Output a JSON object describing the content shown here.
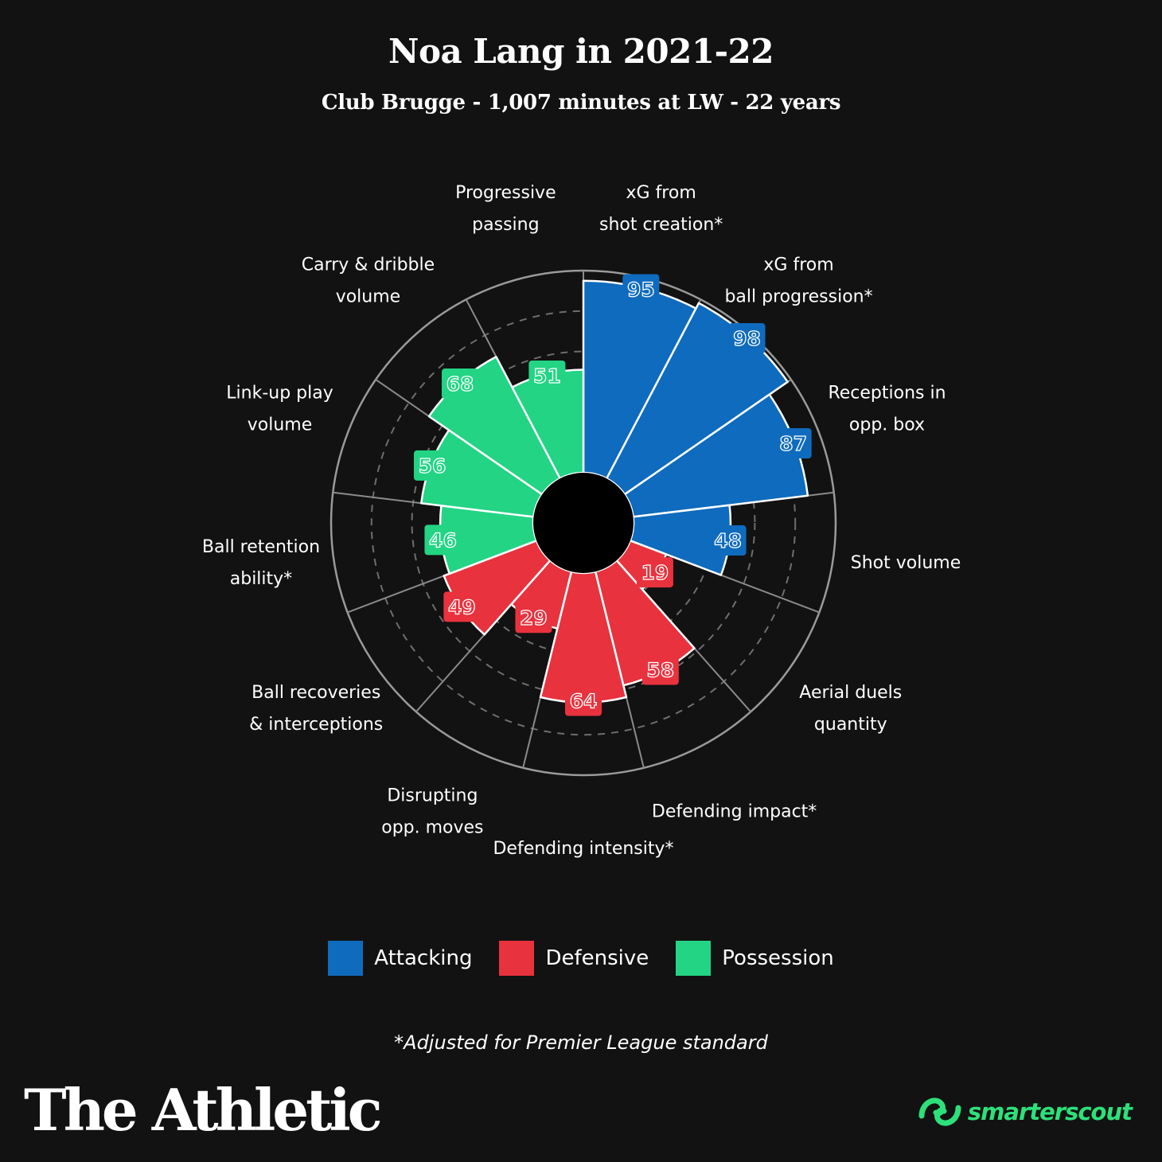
{
  "header": {
    "title": "Noa Lang in 2021-22",
    "subtitle": "Club Brugge - 1,007 minutes at LW - 22 years"
  },
  "chart_data": {
    "type": "polar-bar",
    "scale": [
      0,
      100
    ],
    "rings": [
      20,
      40,
      60,
      80,
      100
    ],
    "categories": [
      {
        "label": "xG from\nshot creation*",
        "value": 95,
        "group": "Attacking"
      },
      {
        "label": "xG from\nball progression*",
        "value": 98,
        "group": "Attacking"
      },
      {
        "label": "Receptions in\nopp. box",
        "value": 87,
        "group": "Attacking"
      },
      {
        "label": "Shot volume",
        "value": 48,
        "group": "Attacking"
      },
      {
        "label": "Aerial duels\nquantity",
        "value": 19,
        "group": "Defensive"
      },
      {
        "label": "Defending impact*",
        "value": 58,
        "group": "Defensive"
      },
      {
        "label": "Defending intensity*",
        "value": 64,
        "group": "Defensive"
      },
      {
        "label": "Disrupting\nopp. moves",
        "value": 29,
        "group": "Defensive"
      },
      {
        "label": "Ball recoveries\n& interceptions",
        "value": 49,
        "group": "Defensive"
      },
      {
        "label": "Ball retention\nability*",
        "value": 46,
        "group": "Possession"
      },
      {
        "label": "Link-up play\nvolume",
        "value": 56,
        "group": "Possession"
      },
      {
        "label": "Carry & dribble\nvolume",
        "value": 68,
        "group": "Possession"
      },
      {
        "label": "Progressive\npassing",
        "value": 51,
        "group": "Possession"
      }
    ],
    "legend": [
      {
        "name": "Attacking",
        "color": "#0f6bbd"
      },
      {
        "name": "Defensive",
        "color": "#e8323e"
      },
      {
        "name": "Possession",
        "color": "#22d484"
      }
    ],
    "legend_position": "bottom"
  },
  "footnote": "*Adjusted for Premier League standard",
  "brand": "The Athletic",
  "partner": {
    "name": "smarterscout",
    "icon": "smarterscout-logo-icon"
  }
}
